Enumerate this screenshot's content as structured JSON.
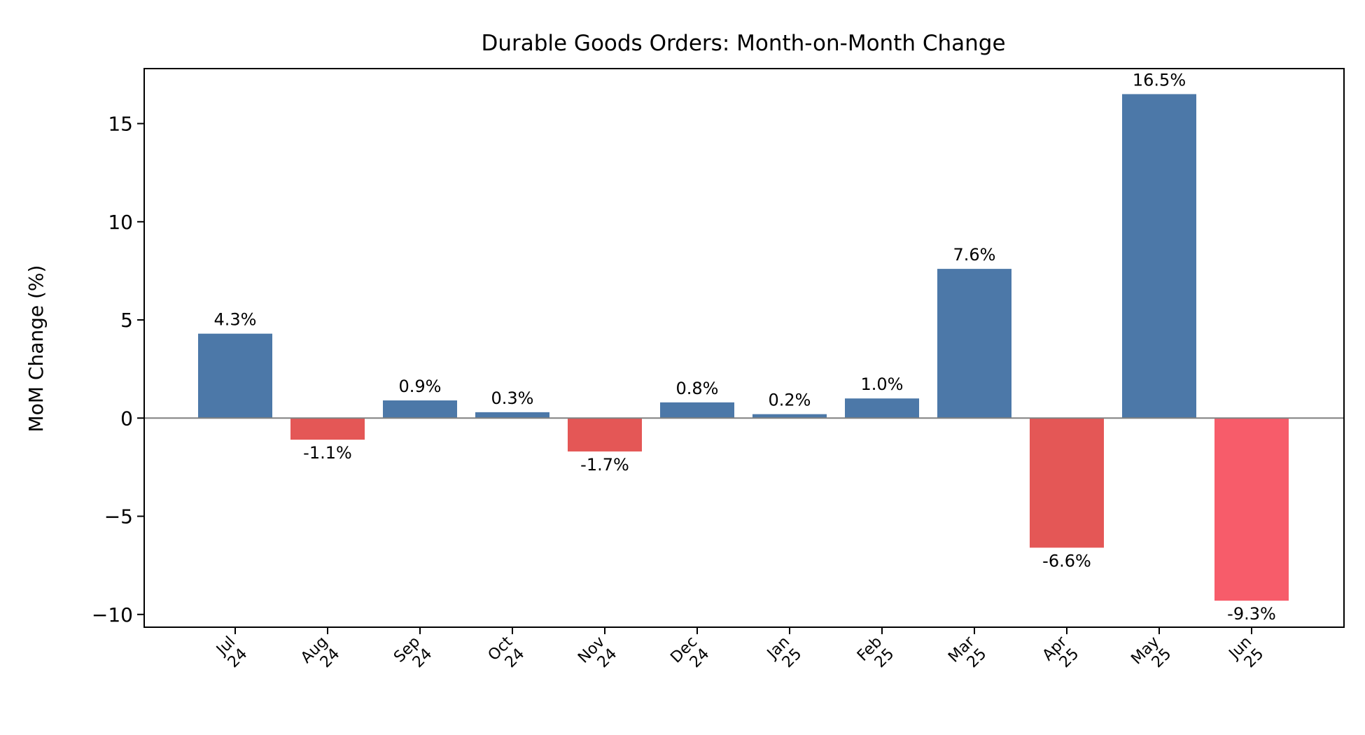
{
  "chart_data": {
    "type": "bar",
    "title": "Durable Goods Orders: Month-on-Month Change",
    "xlabel": "",
    "ylabel": "MoM Change (%)",
    "ylim": [
      -10.65,
      17.8
    ],
    "yticks": [
      -10,
      -5,
      0,
      5,
      10,
      15
    ],
    "ytick_labels": [
      "−10",
      "−5",
      "0",
      "5",
      "10",
      "15"
    ],
    "categories": [
      [
        "Jul",
        "24"
      ],
      [
        "Aug",
        "24"
      ],
      [
        "Sep",
        "24"
      ],
      [
        "Oct",
        "24"
      ],
      [
        "Nov",
        "24"
      ],
      [
        "Dec",
        "24"
      ],
      [
        "Jan",
        "25"
      ],
      [
        "Feb",
        "25"
      ],
      [
        "Mar",
        "25"
      ],
      [
        "Apr",
        "25"
      ],
      [
        "May",
        "25"
      ],
      [
        "Jun",
        "25"
      ]
    ],
    "values": [
      4.3,
      -1.1,
      0.9,
      0.3,
      -1.7,
      0.8,
      0.2,
      1.0,
      7.6,
      -6.6,
      16.5,
      -9.3
    ],
    "labels": [
      "4.3%",
      "-1.1%",
      "0.9%",
      "0.3%",
      "-1.7%",
      "0.8%",
      "0.2%",
      "1.0%",
      "7.6%",
      "-6.6%",
      "16.5%",
      "-9.3%"
    ],
    "colors": [
      "#4c78a8",
      "#e45756",
      "#4c78a8",
      "#4c78a8",
      "#e45756",
      "#4c78a8",
      "#4c78a8",
      "#4c78a8",
      "#4c78a8",
      "#e45756",
      "#4c78a8",
      "#f75c6a"
    ],
    "zero_line_color": "#808080",
    "grid": false
  }
}
